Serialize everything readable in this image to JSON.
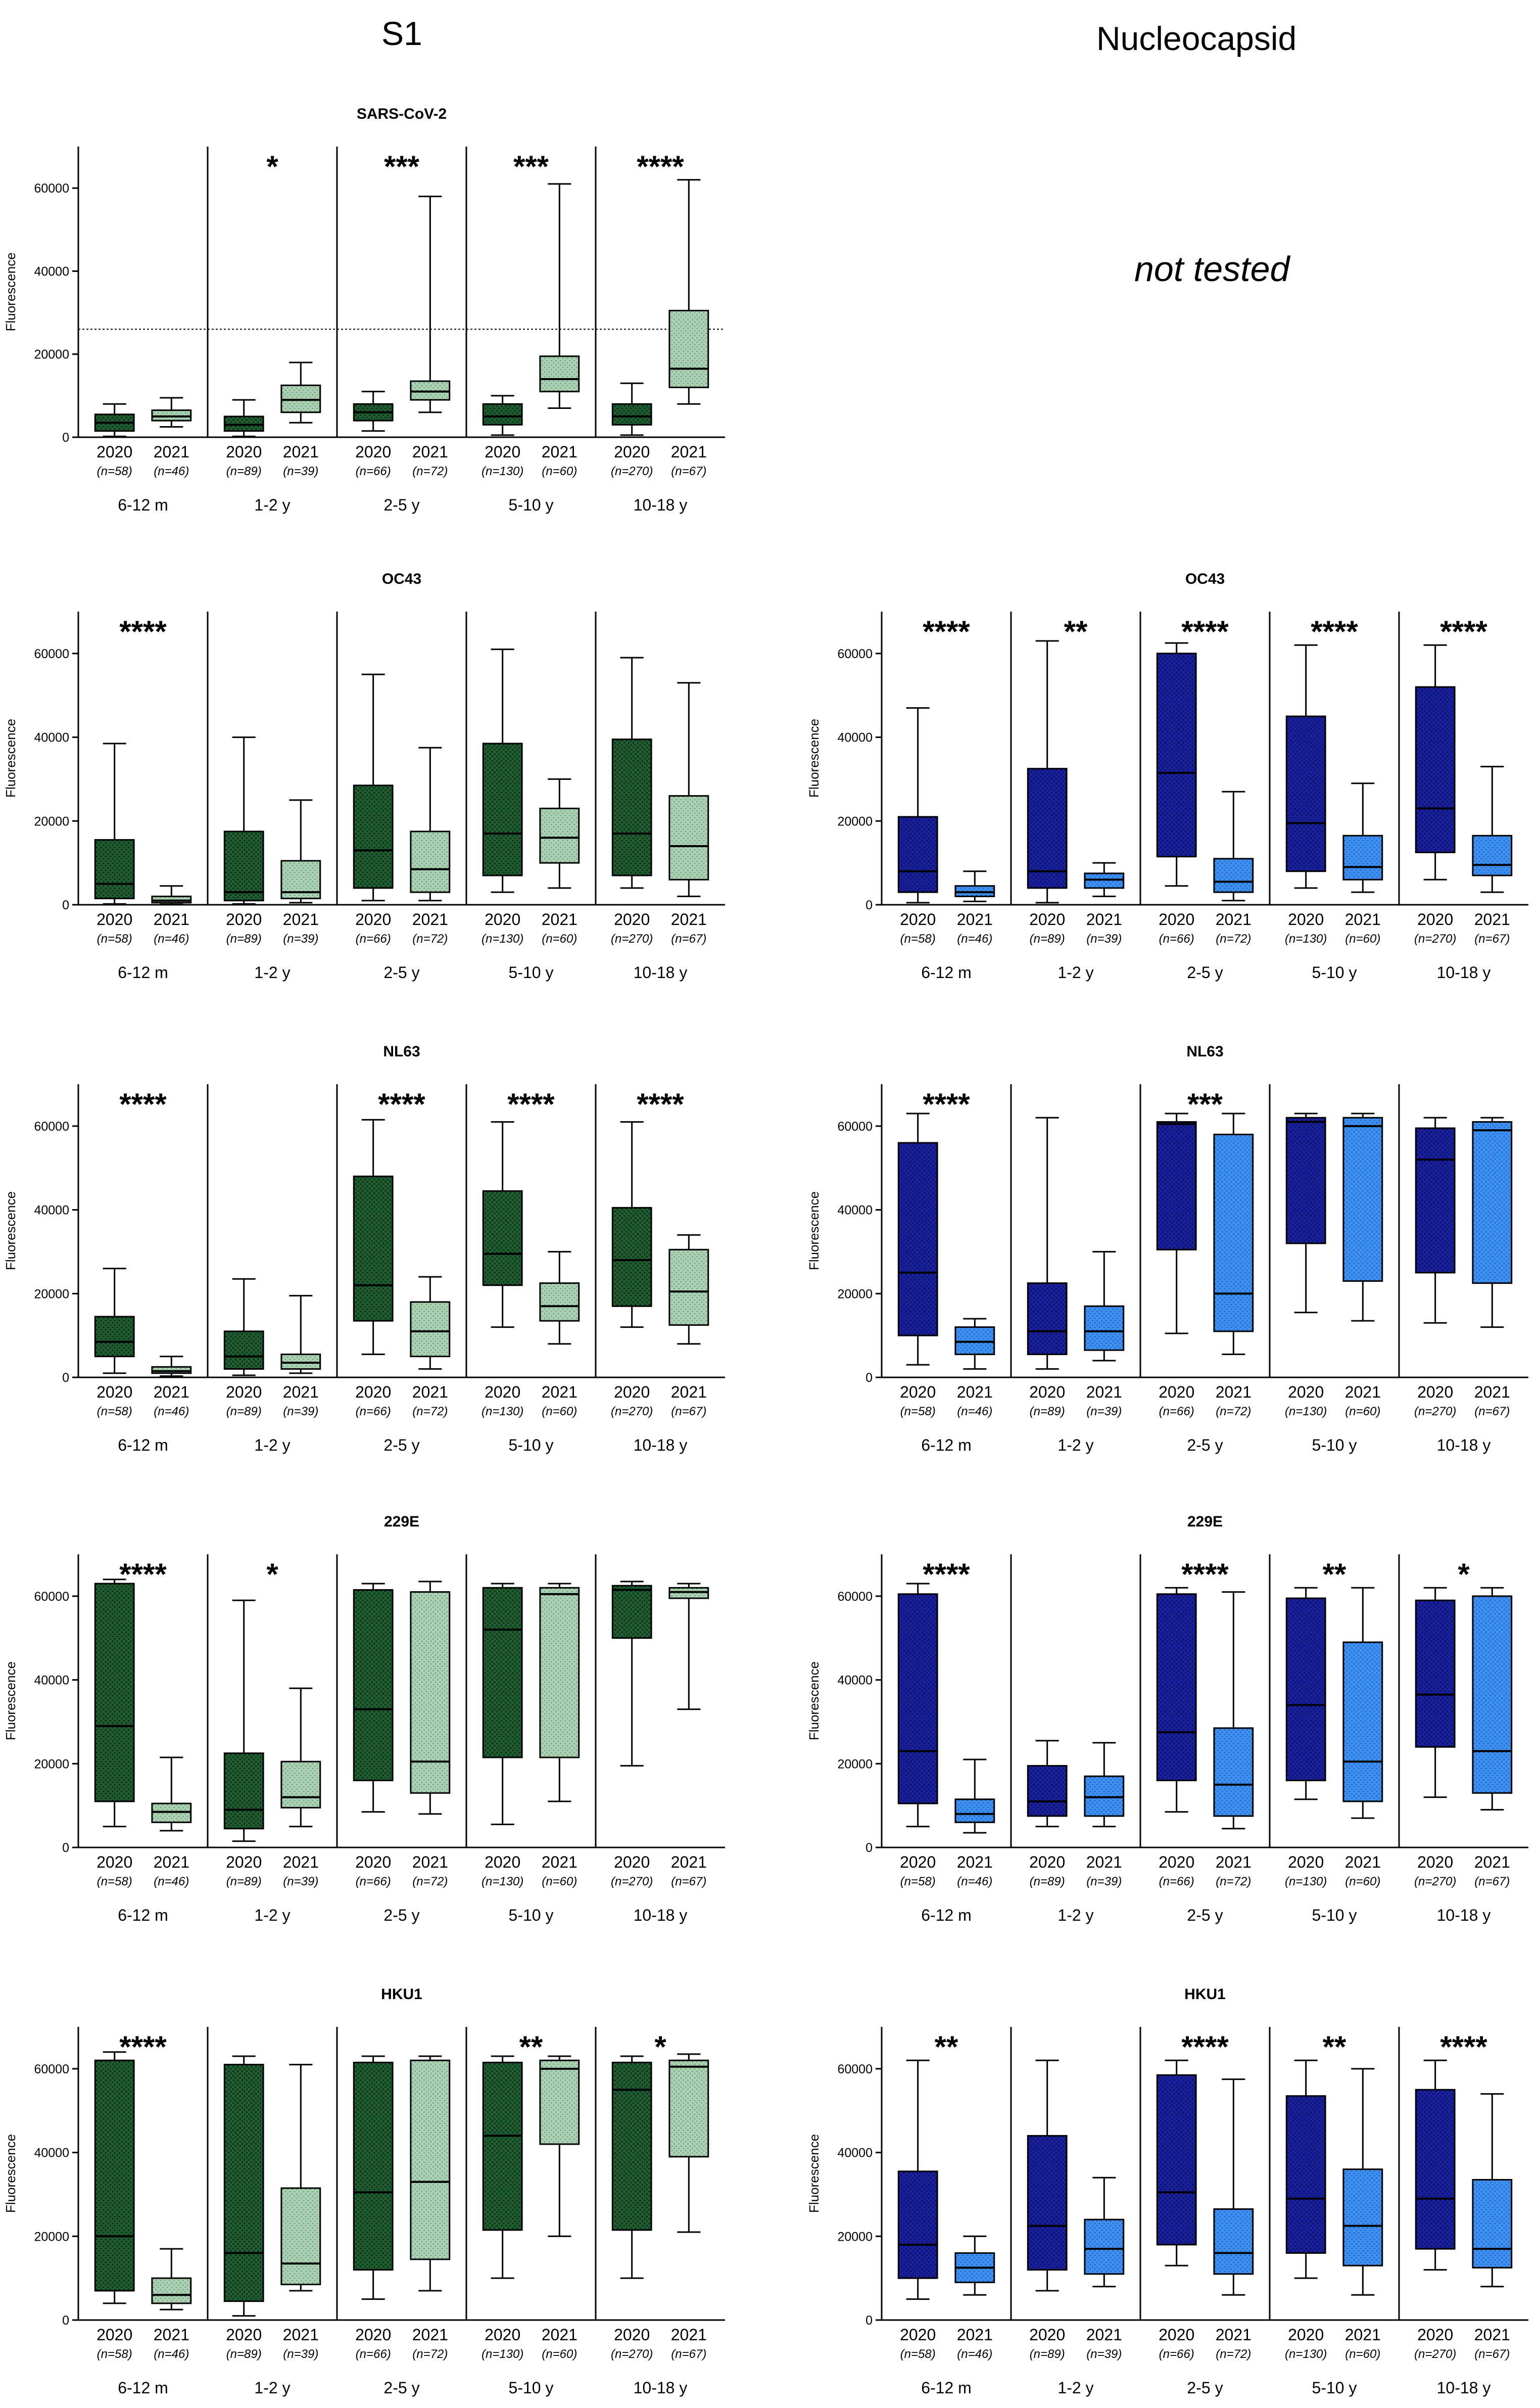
{
  "figure": {
    "left_title": "S1",
    "right_title": "Nucleocapsid",
    "not_tested_label": "not tested",
    "ylabel": "Fluorescence",
    "year_labels": [
      "2020",
      "2021"
    ],
    "age_groups": [
      "6-12 m",
      "1-2 y",
      "2-5 y",
      "5-10 y",
      "10-18 y"
    ],
    "n_labels": [
      "(n=58)",
      "(n=46)",
      "(n=89)",
      "(n=39)",
      "(n=66)",
      "(n=72)",
      "(n=130)",
      "(n=60)",
      "(n=270)",
      "(n=67)"
    ],
    "y_ticks": [
      0,
      20000,
      40000,
      60000
    ],
    "colors": {
      "s1_2020": "#1f5c32",
      "s1_2021": "#a9d1b2",
      "n_2020": "#1a1f9c",
      "n_2021": "#3d8ff0"
    }
  },
  "chart_data": [
    {
      "type": "box",
      "panel": "S1",
      "title": "SARS-CoV-2",
      "ylim": [
        0,
        70000
      ],
      "ylabel": "Fluorescence",
      "reference_line": 26000,
      "significance": [
        "",
        "*",
        "***",
        "***",
        "****"
      ],
      "boxes": [
        {
          "q1": 1500,
          "median": 3500,
          "q3": 5500,
          "wlo": 200,
          "whi": 8000
        },
        {
          "q1": 4000,
          "median": 5000,
          "q3": 6500,
          "wlo": 2500,
          "whi": 9500
        },
        {
          "q1": 1500,
          "median": 3000,
          "q3": 5000,
          "wlo": 200,
          "whi": 9000
        },
        {
          "q1": 6000,
          "median": 9000,
          "q3": 12500,
          "wlo": 3500,
          "whi": 18000
        },
        {
          "q1": 4000,
          "median": 6000,
          "q3": 8000,
          "wlo": 1500,
          "whi": 11000
        },
        {
          "q1": 9000,
          "median": 11000,
          "q3": 13500,
          "wlo": 6000,
          "whi": 58000
        },
        {
          "q1": 3000,
          "median": 5000,
          "q3": 8000,
          "wlo": 500,
          "whi": 10000
        },
        {
          "q1": 11000,
          "median": 14000,
          "q3": 19500,
          "wlo": 7000,
          "whi": 61000
        },
        {
          "q1": 3000,
          "median": 5000,
          "q3": 8000,
          "wlo": 500,
          "whi": 13000
        },
        {
          "q1": 12000,
          "median": 16500,
          "q3": 30500,
          "wlo": 8000,
          "whi": 62000
        }
      ]
    },
    {
      "type": "box",
      "panel": "S1",
      "title": "OC43",
      "ylim": [
        0,
        70000
      ],
      "ylabel": "Fluorescence",
      "significance": [
        "****",
        "",
        "",
        "",
        ""
      ],
      "boxes": [
        {
          "q1": 1500,
          "median": 5000,
          "q3": 15500,
          "wlo": 200,
          "whi": 38500
        },
        {
          "q1": 500,
          "median": 1000,
          "q3": 2000,
          "wlo": 100,
          "whi": 4500
        },
        {
          "q1": 1000,
          "median": 3000,
          "q3": 17500,
          "wlo": 200,
          "whi": 40000
        },
        {
          "q1": 1500,
          "median": 3000,
          "q3": 10500,
          "wlo": 500,
          "whi": 25000
        },
        {
          "q1": 4000,
          "median": 13000,
          "q3": 28500,
          "wlo": 1000,
          "whi": 55000
        },
        {
          "q1": 3000,
          "median": 8500,
          "q3": 17500,
          "wlo": 1000,
          "whi": 37500
        },
        {
          "q1": 7000,
          "median": 17000,
          "q3": 38500,
          "wlo": 3000,
          "whi": 61000
        },
        {
          "q1": 10000,
          "median": 16000,
          "q3": 23000,
          "wlo": 4000,
          "whi": 30000
        },
        {
          "q1": 7000,
          "median": 17000,
          "q3": 39500,
          "wlo": 4000,
          "whi": 59000
        },
        {
          "q1": 6000,
          "median": 14000,
          "q3": 26000,
          "wlo": 2000,
          "whi": 53000
        }
      ]
    },
    {
      "type": "box",
      "panel": "Nucleocapsid",
      "title": "OC43",
      "ylim": [
        0,
        70000
      ],
      "ylabel": "Fluorescence",
      "significance": [
        "****",
        "**",
        "****",
        "****",
        "****"
      ],
      "boxes": [
        {
          "q1": 3000,
          "median": 8000,
          "q3": 21000,
          "wlo": 500,
          "whi": 47000
        },
        {
          "q1": 2000,
          "median": 3000,
          "q3": 4500,
          "wlo": 800,
          "whi": 8000
        },
        {
          "q1": 4000,
          "median": 8000,
          "q3": 32500,
          "wlo": 500,
          "whi": 63000
        },
        {
          "q1": 4000,
          "median": 6000,
          "q3": 7500,
          "wlo": 2000,
          "whi": 10000
        },
        {
          "q1": 11500,
          "median": 31500,
          "q3": 60000,
          "wlo": 4500,
          "whi": 62500
        },
        {
          "q1": 3000,
          "median": 5500,
          "q3": 11000,
          "wlo": 1000,
          "whi": 27000
        },
        {
          "q1": 8000,
          "median": 19500,
          "q3": 45000,
          "wlo": 4000,
          "whi": 62000
        },
        {
          "q1": 6000,
          "median": 9000,
          "q3": 16500,
          "wlo": 3000,
          "whi": 29000
        },
        {
          "q1": 12500,
          "median": 23000,
          "q3": 52000,
          "wlo": 6000,
          "whi": 62000
        },
        {
          "q1": 7000,
          "median": 9500,
          "q3": 16500,
          "wlo": 3000,
          "whi": 33000
        }
      ]
    },
    {
      "type": "box",
      "panel": "S1",
      "title": "NL63",
      "ylim": [
        0,
        70000
      ],
      "ylabel": "Fluorescence",
      "significance": [
        "****",
        "",
        "****",
        "****",
        "****"
      ],
      "boxes": [
        {
          "q1": 5000,
          "median": 8500,
          "q3": 14500,
          "wlo": 1000,
          "whi": 26000
        },
        {
          "q1": 1000,
          "median": 1500,
          "q3": 2500,
          "wlo": 300,
          "whi": 5000
        },
        {
          "q1": 2000,
          "median": 5000,
          "q3": 11000,
          "wlo": 500,
          "whi": 23500
        },
        {
          "q1": 2000,
          "median": 3500,
          "q3": 5500,
          "wlo": 1000,
          "whi": 19500
        },
        {
          "q1": 13500,
          "median": 22000,
          "q3": 48000,
          "wlo": 5500,
          "whi": 61500
        },
        {
          "q1": 5000,
          "median": 11000,
          "q3": 18000,
          "wlo": 2000,
          "whi": 24000
        },
        {
          "q1": 22000,
          "median": 29500,
          "q3": 44500,
          "wlo": 12000,
          "whi": 61000
        },
        {
          "q1": 13500,
          "median": 17000,
          "q3": 22500,
          "wlo": 8000,
          "whi": 30000
        },
        {
          "q1": 17000,
          "median": 28000,
          "q3": 40500,
          "wlo": 12000,
          "whi": 61000
        },
        {
          "q1": 12500,
          "median": 20500,
          "q3": 30500,
          "wlo": 8000,
          "whi": 34000
        }
      ]
    },
    {
      "type": "box",
      "panel": "Nucleocapsid",
      "title": "NL63",
      "ylim": [
        0,
        70000
      ],
      "ylabel": "Fluorescence",
      "significance": [
        "****",
        "",
        "***",
        "",
        ""
      ],
      "boxes": [
        {
          "q1": 10000,
          "median": 25000,
          "q3": 56000,
          "wlo": 3000,
          "whi": 63000
        },
        {
          "q1": 5500,
          "median": 8500,
          "q3": 12000,
          "wlo": 2000,
          "whi": 14000
        },
        {
          "q1": 5500,
          "median": 11000,
          "q3": 22500,
          "wlo": 2000,
          "whi": 62000
        },
        {
          "q1": 6500,
          "median": 11000,
          "q3": 17000,
          "wlo": 4000,
          "whi": 30000
        },
        {
          "q1": 30500,
          "median": 60500,
          "q3": 61000,
          "wlo": 10500,
          "whi": 63000
        },
        {
          "q1": 11000,
          "median": 20000,
          "q3": 58000,
          "wlo": 5500,
          "whi": 63000
        },
        {
          "q1": 32000,
          "median": 61000,
          "q3": 62000,
          "wlo": 15500,
          "whi": 63000
        },
        {
          "q1": 23000,
          "median": 60000,
          "q3": 62000,
          "wlo": 13500,
          "whi": 63000
        },
        {
          "q1": 25000,
          "median": 52000,
          "q3": 59500,
          "wlo": 13000,
          "whi": 62000
        },
        {
          "q1": 22500,
          "median": 59000,
          "q3": 61000,
          "wlo": 12000,
          "whi": 62000
        }
      ]
    },
    {
      "type": "box",
      "panel": "S1",
      "title": "229E",
      "ylim": [
        0,
        70000
      ],
      "ylabel": "Fluorescence",
      "significance": [
        "****",
        "*",
        "",
        "",
        ""
      ],
      "boxes": [
        {
          "q1": 11000,
          "median": 29000,
          "q3": 63000,
          "wlo": 5000,
          "whi": 64000
        },
        {
          "q1": 6000,
          "median": 8500,
          "q3": 10500,
          "wlo": 4000,
          "whi": 21500
        },
        {
          "q1": 4500,
          "median": 9000,
          "q3": 22500,
          "wlo": 1500,
          "whi": 59000
        },
        {
          "q1": 9500,
          "median": 12000,
          "q3": 20500,
          "wlo": 5000,
          "whi": 38000
        },
        {
          "q1": 16000,
          "median": 33000,
          "q3": 61500,
          "wlo": 8500,
          "whi": 63000
        },
        {
          "q1": 13000,
          "median": 20500,
          "q3": 61000,
          "wlo": 8000,
          "whi": 63500
        },
        {
          "q1": 21500,
          "median": 52000,
          "q3": 62000,
          "wlo": 5500,
          "whi": 63000
        },
        {
          "q1": 21500,
          "median": 60500,
          "q3": 62000,
          "wlo": 11000,
          "whi": 63000
        },
        {
          "q1": 50000,
          "median": 61500,
          "q3": 62500,
          "wlo": 19500,
          "whi": 63500
        },
        {
          "q1": 59500,
          "median": 61000,
          "q3": 62000,
          "wlo": 33000,
          "whi": 63000
        }
      ]
    },
    {
      "type": "box",
      "panel": "Nucleocapsid",
      "title": "229E",
      "ylim": [
        0,
        70000
      ],
      "ylabel": "Fluorescence",
      "significance": [
        "****",
        "",
        "****",
        "**",
        "*"
      ],
      "boxes": [
        {
          "q1": 10500,
          "median": 23000,
          "q3": 60500,
          "wlo": 5000,
          "whi": 63000
        },
        {
          "q1": 6000,
          "median": 8000,
          "q3": 11500,
          "wlo": 3500,
          "whi": 21000
        },
        {
          "q1": 7500,
          "median": 11000,
          "q3": 19500,
          "wlo": 5000,
          "whi": 25500
        },
        {
          "q1": 7500,
          "median": 12000,
          "q3": 17000,
          "wlo": 5000,
          "whi": 25000
        },
        {
          "q1": 16000,
          "median": 27500,
          "q3": 60500,
          "wlo": 8500,
          "whi": 62000
        },
        {
          "q1": 7500,
          "median": 15000,
          "q3": 28500,
          "wlo": 4500,
          "whi": 61000
        },
        {
          "q1": 16000,
          "median": 34000,
          "q3": 59500,
          "wlo": 11500,
          "whi": 62000
        },
        {
          "q1": 11000,
          "median": 20500,
          "q3": 49000,
          "wlo": 7000,
          "whi": 62000
        },
        {
          "q1": 24000,
          "median": 36500,
          "q3": 59000,
          "wlo": 12000,
          "whi": 62000
        },
        {
          "q1": 13000,
          "median": 23000,
          "q3": 60000,
          "wlo": 9000,
          "whi": 62000
        }
      ]
    },
    {
      "type": "box",
      "panel": "S1",
      "title": "HKU1",
      "ylim": [
        0,
        70000
      ],
      "ylabel": "Fluorescence",
      "significance": [
        "****",
        "",
        "",
        "**",
        "*"
      ],
      "boxes": [
        {
          "q1": 7000,
          "median": 20000,
          "q3": 62000,
          "wlo": 4000,
          "whi": 64000
        },
        {
          "q1": 4000,
          "median": 6000,
          "q3": 10000,
          "wlo": 2500,
          "whi": 17000
        },
        {
          "q1": 4500,
          "median": 16000,
          "q3": 61000,
          "wlo": 1000,
          "whi": 63000
        },
        {
          "q1": 8500,
          "median": 13500,
          "q3": 31500,
          "wlo": 7000,
          "whi": 61000
        },
        {
          "q1": 12000,
          "median": 30500,
          "q3": 61500,
          "wlo": 5000,
          "whi": 63000
        },
        {
          "q1": 14500,
          "median": 33000,
          "q3": 62000,
          "wlo": 7000,
          "whi": 63000
        },
        {
          "q1": 21500,
          "median": 44000,
          "q3": 61500,
          "wlo": 10000,
          "whi": 63000
        },
        {
          "q1": 42000,
          "median": 60000,
          "q3": 62000,
          "wlo": 20000,
          "whi": 63000
        },
        {
          "q1": 21500,
          "median": 55000,
          "q3": 61500,
          "wlo": 10000,
          "whi": 63000
        },
        {
          "q1": 39000,
          "median": 60500,
          "q3": 62000,
          "wlo": 21000,
          "whi": 63500
        }
      ]
    },
    {
      "type": "box",
      "panel": "Nucleocapsid",
      "title": "HKU1",
      "ylim": [
        0,
        70000
      ],
      "ylabel": "Fluorescence",
      "significance": [
        "**",
        "",
        "****",
        "**",
        "****"
      ],
      "boxes": [
        {
          "q1": 10000,
          "median": 18000,
          "q3": 35500,
          "wlo": 5000,
          "whi": 62000
        },
        {
          "q1": 9000,
          "median": 12500,
          "q3": 16000,
          "wlo": 6000,
          "whi": 20000
        },
        {
          "q1": 12000,
          "median": 22500,
          "q3": 44000,
          "wlo": 7000,
          "whi": 62000
        },
        {
          "q1": 11000,
          "median": 17000,
          "q3": 24000,
          "wlo": 8000,
          "whi": 34000
        },
        {
          "q1": 18000,
          "median": 30500,
          "q3": 58500,
          "wlo": 13000,
          "whi": 62000
        },
        {
          "q1": 11000,
          "median": 16000,
          "q3": 26500,
          "wlo": 6000,
          "whi": 57500
        },
        {
          "q1": 16000,
          "median": 29000,
          "q3": 53500,
          "wlo": 10000,
          "whi": 62000
        },
        {
          "q1": 13000,
          "median": 22500,
          "q3": 36000,
          "wlo": 6000,
          "whi": 60000
        },
        {
          "q1": 17000,
          "median": 29000,
          "q3": 55000,
          "wlo": 12000,
          "whi": 62000
        },
        {
          "q1": 12500,
          "median": 17000,
          "q3": 33500,
          "wlo": 8000,
          "whi": 54000
        }
      ]
    }
  ]
}
